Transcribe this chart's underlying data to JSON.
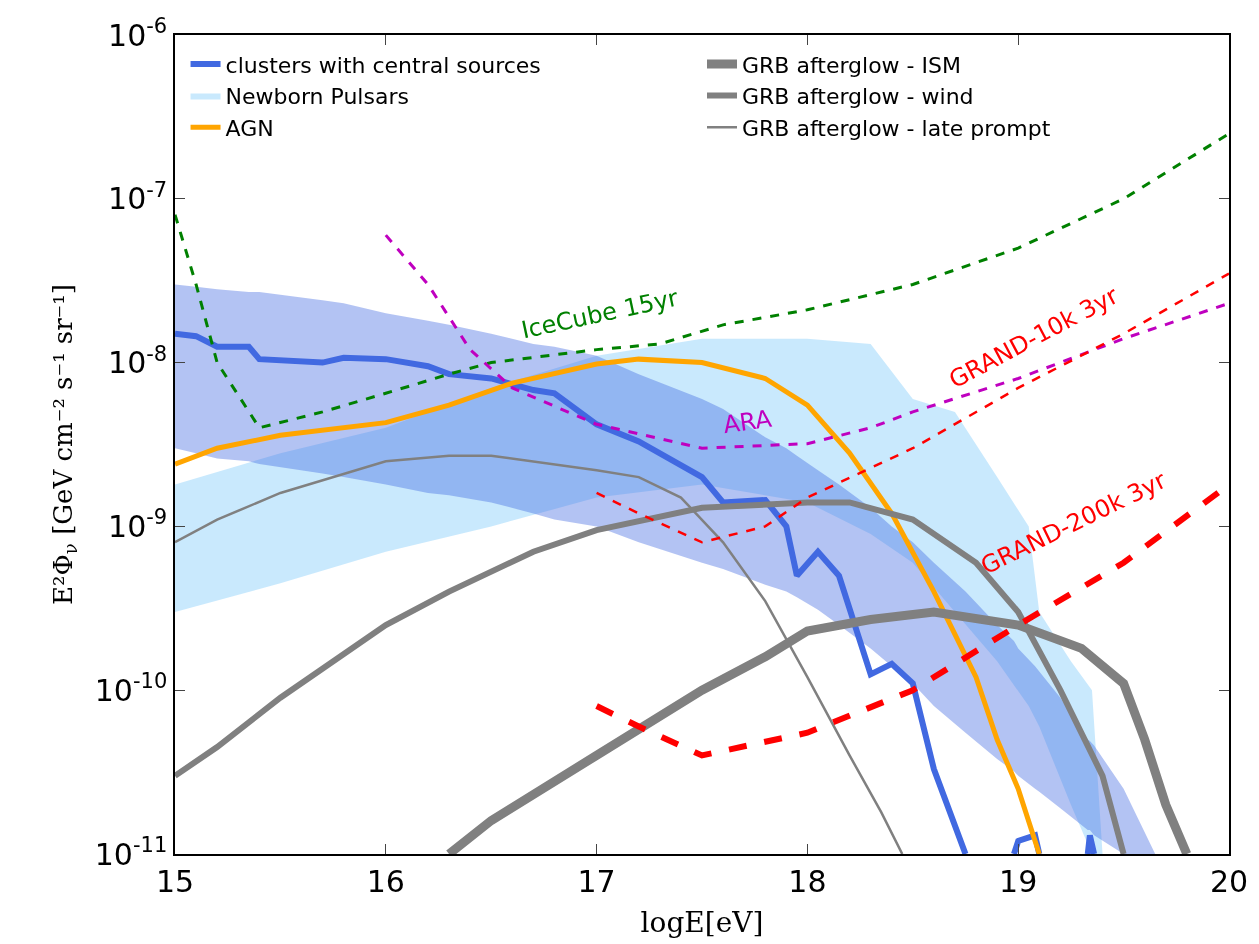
{
  "chart_data": {
    "type": "line",
    "xlabel": "logE[eV]",
    "ylabel": "E²Φ$_{ν}$ [GeV cm⁻² s⁻¹ sr⁻¹]",
    "log": "y",
    "legend": "top",
    "marker": "none",
    "xlim": [
      15,
      20
    ],
    "xticks": [
      15,
      16,
      17,
      18,
      19,
      20
    ],
    "ylim": [
      1e-11,
      1e-06
    ],
    "yticks": [
      {
        "value": 1e-11,
        "label": "10$^{-11}$"
      },
      {
        "value": 1e-10,
        "label": "10$^{-10}$"
      },
      {
        "value": 1e-09,
        "label": "10$^{-9}$"
      },
      {
        "value": 1e-08,
        "label": "10$^{-8}$"
      },
      {
        "value": 1e-07,
        "label": "10$^{-7}$"
      },
      {
        "value": 1e-06,
        "label": "10$^{-6}$"
      }
    ],
    "series": [
      {
        "name": "Newborn Pulsars",
        "color": "#87cefa",
        "x": [
          15,
          15.5,
          16,
          16.5,
          17,
          17.5,
          18,
          18.3,
          18.5,
          18.7,
          18.9,
          19.05,
          19.1,
          19.25,
          19.35,
          19.4
        ],
        "values": [
          null,
          null,
          null,
          null,
          null,
          null,
          null,
          null,
          null,
          null,
          null,
          null,
          null,
          null,
          null,
          null
        ],
        "lower": [
          3e-10,
          4.5e-10,
          7e-10,
          1e-09,
          1.5e-09,
          1.8e-09,
          1.4e-09,
          9e-10,
          6e-10,
          3e-10,
          1.5e-10,
          8e-11,
          6e-11,
          2e-11,
          1e-11,
          1e-11
        ],
        "upper": [
          1.8e-09,
          2.8e-09,
          4e-09,
          7e-09,
          1.1e-08,
          1.4e-08,
          1.4e-08,
          1.3e-08,
          6e-09,
          5e-09,
          2e-09,
          1e-09,
          3e-10,
          1.5e-10,
          1e-10,
          1e-11
        ]
      },
      {
        "name": "clusters with central sources",
        "color": "#4169e1",
        "line_style": "solid",
        "x": [
          15,
          15.1,
          15.2,
          15.35,
          15.4,
          15.7,
          15.8,
          16.0,
          16.2,
          16.3,
          16.5,
          16.7,
          16.8,
          17.0,
          17.2,
          17.5,
          17.6,
          17.8,
          17.9,
          17.95,
          18.05,
          18.15,
          18.3,
          18.4,
          18.5,
          18.6,
          18.75,
          18.9,
          18.98,
          19.0,
          19.08,
          19.1,
          19.2,
          19.33,
          19.34,
          19.36,
          19.5,
          19.65
        ],
        "values": [
          1.5e-08,
          1.45e-08,
          1.25e-08,
          1.25e-08,
          1.05e-08,
          1e-08,
          1.07e-08,
          1.05e-08,
          9.5e-09,
          8.5e-09,
          8e-09,
          6.8e-09,
          6.5e-09,
          4.2e-09,
          3.3e-09,
          2e-09,
          1.4e-09,
          1.45e-09,
          1e-09,
          5e-10,
          7e-10,
          5e-10,
          1.25e-10,
          1.45e-10,
          1.1e-10,
          3.3e-11,
          1e-11,
          null,
          1e-11,
          1.2e-11,
          1.3e-11,
          1e-11,
          null,
          1e-11,
          1.3e-11,
          1e-11,
          null,
          null
        ],
        "upper": [
          3e-08,
          2.9e-08,
          2.8e-08,
          2.7e-08,
          2.7e-08,
          2.4e-08,
          2.3e-08,
          2e-08,
          1.8e-08,
          1.7e-08,
          1.5e-08,
          1.3e-08,
          1.25e-08,
          1.1e-08,
          8.5e-09,
          6e-09,
          5.2e-09,
          3.5e-09,
          3e-09,
          2.7e-09,
          2.2e-09,
          1.8e-09,
          1.3e-09,
          1e-09,
          8e-10,
          6e-10,
          4e-10,
          2.5e-10,
          2e-10,
          1.8e-10,
          1.4e-10,
          1.3e-10,
          9e-11,
          5e-11,
          4.9e-11,
          4.6e-11,
          2.5e-11,
          1e-11
        ],
        "lower": [
          3e-09,
          2.8e-09,
          2.6e-09,
          2.5e-09,
          2.4e-09,
          2.1e-09,
          2e-09,
          1.8e-09,
          1.6e-09,
          1.55e-09,
          1.4e-09,
          1.2e-09,
          1.1e-09,
          1e-09,
          8e-10,
          6e-10,
          5.5e-10,
          4.4e-10,
          4e-10,
          3.7e-10,
          3.1e-10,
          2.5e-10,
          1.8e-10,
          1.4e-10,
          1.1e-10,
          8e-11,
          5.5e-11,
          3.8e-11,
          3.2e-11,
          3e-11,
          2.5e-11,
          2.4e-11,
          1.9e-11,
          1.4e-11,
          1.4e-11,
          1.3e-11,
          1e-11,
          1e-11
        ]
      },
      {
        "name": "AGN",
        "color": "#ffa500",
        "line_style": "solid",
        "x": [
          15,
          15.2,
          15.5,
          16,
          16.3,
          16.6,
          17,
          17.2,
          17.5,
          17.8,
          18,
          18.2,
          18.4,
          18.6,
          18.8,
          18.9,
          19.0,
          19.1
        ],
        "values": [
          2.4e-09,
          3e-09,
          3.6e-09,
          4.3e-09,
          5.5e-09,
          7.5e-09,
          9.8e-09,
          1.05e-08,
          1e-08,
          8e-09,
          5.5e-09,
          2.8e-09,
          1.2e-09,
          4e-10,
          1.2e-10,
          5e-11,
          2.5e-11,
          1e-11
        ]
      },
      {
        "name": "GRB afterglow - ISM",
        "color": "#808080",
        "line_style": "solid",
        "x": [
          16.3,
          16.5,
          17,
          17.5,
          17.8,
          18,
          18.3,
          18.6,
          19.0,
          19.3,
          19.5,
          19.6,
          19.7,
          19.8
        ],
        "values": [
          1e-11,
          1.6e-11,
          4e-11,
          1e-10,
          1.6e-10,
          2.3e-10,
          2.7e-10,
          3e-10,
          2.5e-10,
          1.8e-10,
          1.1e-10,
          5e-11,
          2e-11,
          1e-11
        ]
      },
      {
        "name": "GRB afterglow - wind",
        "color": "#808080",
        "line_style": "solid",
        "x": [
          15,
          15.2,
          15.5,
          16,
          16.3,
          16.7,
          17,
          17.5,
          18,
          18.2,
          18.5,
          18.8,
          19.0,
          19.2,
          19.4,
          19.5
        ],
        "values": [
          3e-11,
          4.5e-11,
          9e-11,
          2.5e-10,
          4e-10,
          7e-10,
          9.5e-10,
          1.3e-09,
          1.4e-09,
          1.4e-09,
          1.1e-09,
          6e-10,
          3e-10,
          1e-10,
          3e-11,
          1e-11
        ]
      },
      {
        "name": "GRB afterglow - late prompt",
        "color": "#808080",
        "line_style": "solid",
        "x": [
          15,
          15.2,
          15.5,
          16,
          16.3,
          16.5,
          17,
          17.2,
          17.4,
          17.6,
          17.8,
          18.0,
          18.2,
          18.35,
          18.45
        ],
        "values": [
          8e-10,
          1.1e-09,
          1.6e-09,
          2.5e-09,
          2.7e-09,
          2.7e-09,
          2.2e-09,
          2e-09,
          1.5e-09,
          8e-10,
          3.5e-10,
          1.2e-10,
          4e-11,
          1.8e-11,
          1e-11
        ]
      },
      {
        "name": "IceCube 15yr",
        "color": "#008000",
        "line_style": "dashed",
        "x": [
          15,
          15.1,
          15.2,
          15.4,
          15.7,
          16,
          16.3,
          16.5,
          17,
          17.3,
          17.6,
          18,
          18.5,
          19,
          19.5,
          20
        ],
        "values": [
          8e-08,
          3e-08,
          1e-08,
          4e-09,
          5e-09,
          6.5e-09,
          8.5e-09,
          1e-08,
          1.2e-08,
          1.3e-08,
          1.7e-08,
          2.1e-08,
          3e-08,
          5e-08,
          1e-07,
          2.5e-07
        ]
      },
      {
        "name": "ARA",
        "color": "#bf00bf",
        "line_style": "dashed",
        "x": [
          16,
          16.2,
          16.4,
          16.6,
          17,
          17.5,
          18,
          18.3,
          18.5,
          19,
          19.5,
          20
        ],
        "values": [
          6e-08,
          3e-08,
          1.2e-08,
          7e-09,
          4.2e-09,
          3e-09,
          3.2e-09,
          4e-09,
          5e-09,
          8e-09,
          1.4e-08,
          2.3e-08
        ]
      },
      {
        "name": "GRAND-10k 3yr",
        "color": "#ff0000",
        "line_style": "dashed",
        "x": [
          17,
          17.2,
          17.5,
          17.8,
          18,
          18.5,
          19,
          19.5,
          20
        ],
        "values": [
          1.6e-09,
          1.2e-09,
          8e-10,
          1e-09,
          1.5e-09,
          3e-09,
          7e-09,
          1.5e-08,
          3.5e-08
        ]
      },
      {
        "name": "GRAND-200k 3yr",
        "color": "#ff0000",
        "line_style": "dashed",
        "x": [
          17,
          17.2,
          17.5,
          18,
          18.5,
          19,
          19.5,
          20
        ],
        "values": [
          8e-11,
          6e-11,
          4e-11,
          5.5e-11,
          1e-10,
          2.5e-10,
          6e-10,
          1.8e-09
        ]
      }
    ]
  }
}
